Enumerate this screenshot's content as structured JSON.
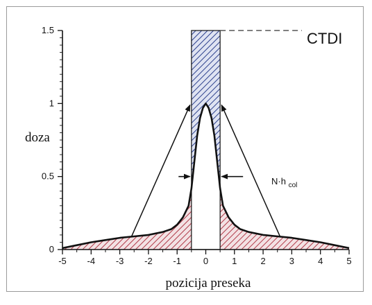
{
  "chart_data": {
    "type": "line",
    "xlabel": "pozicija preseka",
    "ylabel": "doza",
    "xlim": [
      -5,
      5
    ],
    "ylim": [
      0,
      1.5
    ],
    "x_ticks": [
      -5,
      -4,
      -3,
      -2,
      -1,
      0,
      1,
      2,
      3,
      4,
      5
    ],
    "y_ticks": [
      0,
      0.5,
      1,
      1.5
    ],
    "dose_profile": {
      "x": [
        -5,
        -4.5,
        -4,
        -3.5,
        -3,
        -2.5,
        -2,
        -1.5,
        -1.2,
        -1,
        -0.8,
        -0.6,
        -0.5,
        -0.4,
        -0.3,
        -0.2,
        -0.1,
        0,
        0.1,
        0.2,
        0.3,
        0.4,
        0.5,
        0.6,
        0.8,
        1,
        1.2,
        1.5,
        2,
        2.5,
        3,
        3.5,
        4,
        4.5,
        5
      ],
      "y": [
        0.01,
        0.03,
        0.05,
        0.065,
        0.08,
        0.09,
        0.1,
        0.12,
        0.14,
        0.17,
        0.22,
        0.3,
        0.42,
        0.6,
        0.78,
        0.9,
        0.97,
        1.0,
        0.97,
        0.9,
        0.78,
        0.6,
        0.42,
        0.3,
        0.22,
        0.17,
        0.14,
        0.12,
        0.1,
        0.09,
        0.08,
        0.065,
        0.05,
        0.03,
        0.01
      ]
    },
    "ctdi": {
      "value": 1.5,
      "x_range": [
        -0.5,
        0.5
      ],
      "label": "CTDI"
    },
    "collimation": {
      "x_range": [
        -0.5,
        0.5
      ],
      "label_base": "N·h",
      "label_sub": "col"
    },
    "colors": {
      "tail_fill": "#b03a48",
      "ctdi_fill": "#2b3f8c",
      "line": "#111111"
    }
  }
}
